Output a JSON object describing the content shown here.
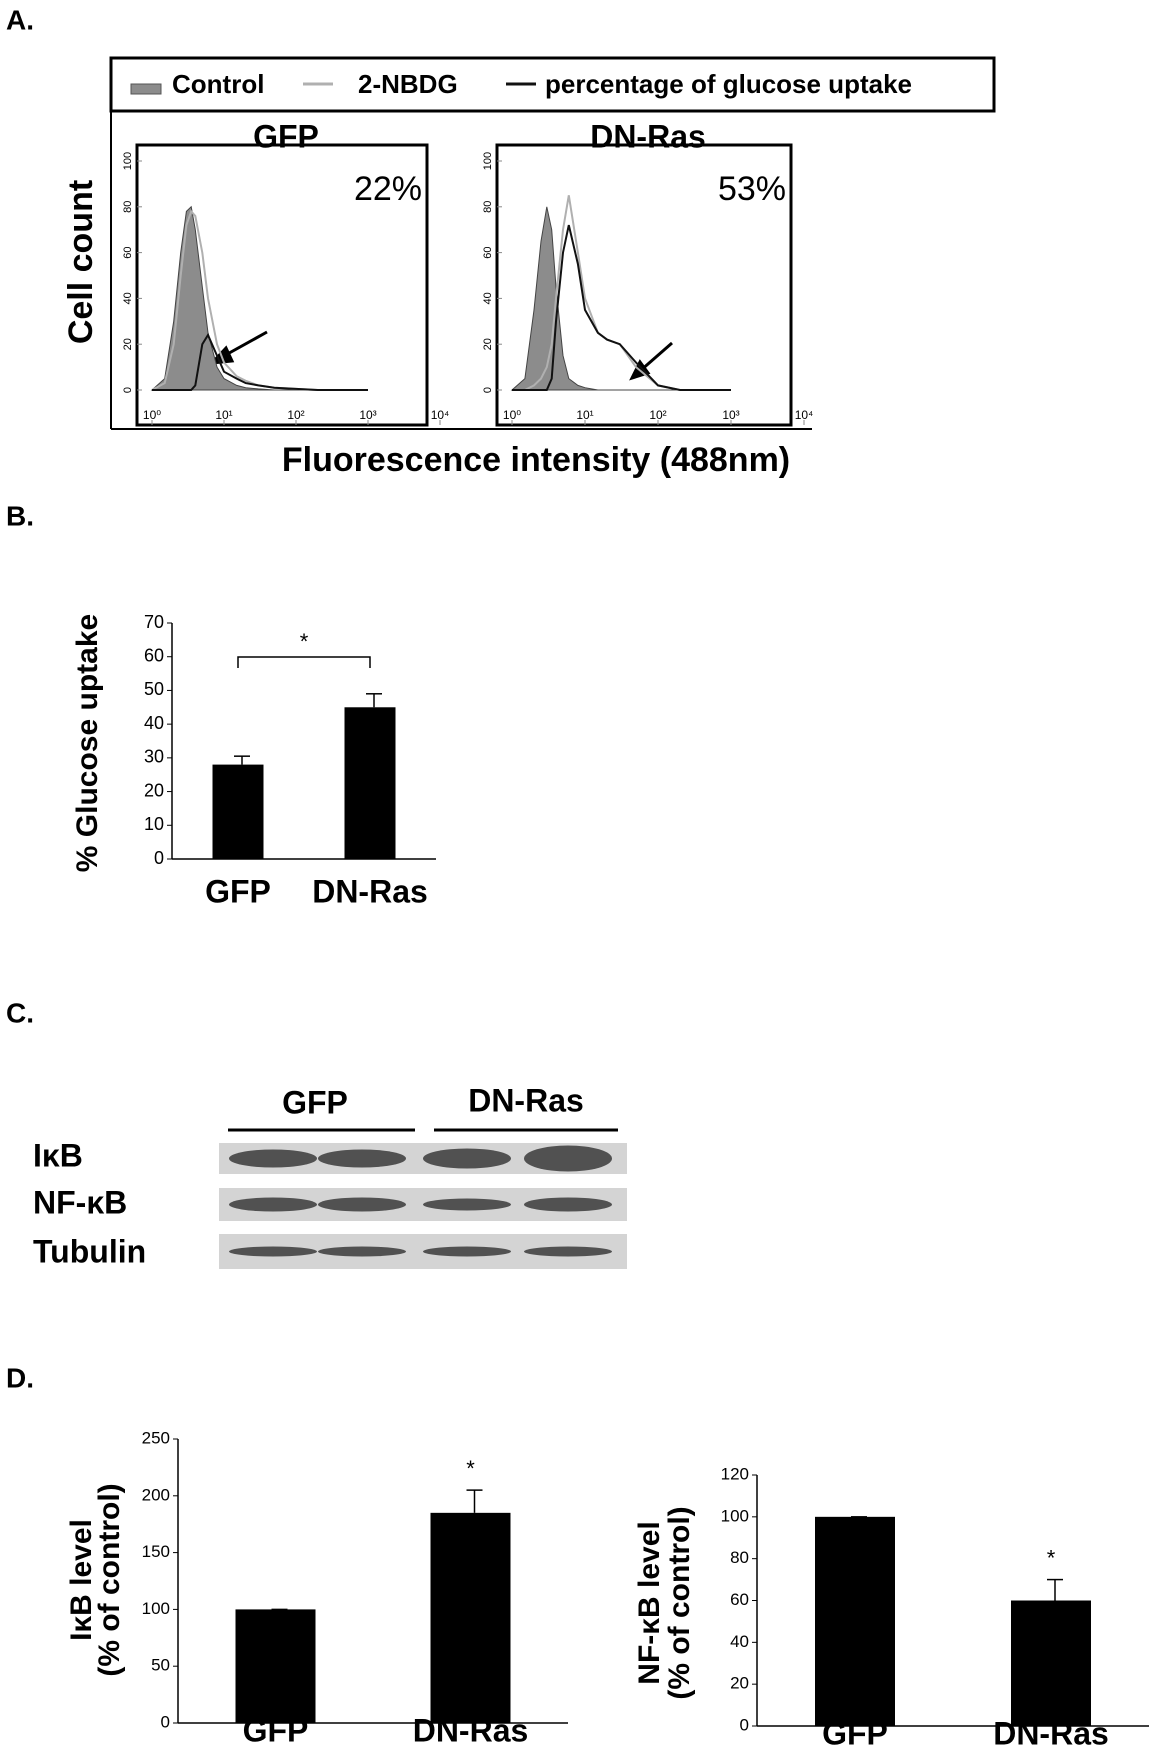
{
  "panel_labels": [
    "A.",
    "B.",
    "C.",
    "D."
  ],
  "chart_data": [
    {
      "type": "flow",
      "y_label": "Cell count",
      "x_label": "Fluorescence intensity (488nm)",
      "x_scale": "log",
      "xlim": [
        1,
        10000
      ],
      "xticks": [
        {
          "value": 1,
          "label": "10⁰"
        },
        {
          "value": 10,
          "label": "10¹"
        },
        {
          "value": 100,
          "label": "10²"
        },
        {
          "value": 1000,
          "label": "10³"
        },
        {
          "value": 10000,
          "label": "10⁴"
        }
      ],
      "ylim": [
        0,
        100
      ],
      "yticks": [
        0,
        20,
        40,
        60,
        80,
        100
      ],
      "x": [
        1,
        1.5,
        2,
        2.5,
        3,
        3.5,
        4,
        5,
        6,
        8,
        10,
        15,
        20,
        30,
        50,
        100,
        200,
        1000
      ],
      "series": [
        {
          "name": "Control",
          "color": "#8c8c8c",
          "filled": true
        },
        {
          "name": "2-NBDG",
          "color": "#b0b0b0"
        },
        {
          "name": "percentage of glucose uptake",
          "color": "#111111"
        }
      ],
      "panels": [
        {
          "title": "GFP",
          "annotation": "22%",
          "values": [
            [
              0,
              5,
              30,
              60,
              78,
              80,
              70,
              45,
              25,
              10,
              5,
              2,
              1,
              0.5,
              0,
              0,
              0,
              0
            ],
            [
              0,
              3,
              20,
              50,
              72,
              78,
              76,
              60,
              40,
              20,
              12,
              6,
              4,
              2,
              1,
              0.5,
              0,
              0
            ],
            [
              0,
              0,
              0,
              0,
              0,
              0,
              2,
              20,
              24,
              15,
              8,
              5,
              3,
              2,
              1,
              0.5,
              0,
              0
            ]
          ]
        },
        {
          "title": "DN-Ras",
          "annotation": "53%",
          "values": [
            [
              0,
              5,
              35,
              65,
              80,
              70,
              45,
              15,
              5,
              2,
              1,
              0,
              0,
              0,
              0,
              0,
              0,
              0
            ],
            [
              0,
              0,
              2,
              5,
              10,
              20,
              40,
              70,
              85,
              60,
              40,
              25,
              22,
              20,
              10,
              2,
              0,
              0
            ],
            [
              0,
              0,
              0,
              0,
              0,
              5,
              30,
              60,
              72,
              55,
              35,
              25,
              22,
              20,
              12,
              2,
              0,
              0
            ]
          ]
        }
      ]
    },
    {
      "type": "bar",
      "y_label": [
        "% Glucose uptake"
      ],
      "categories": [
        "GFP",
        "DN-Ras"
      ],
      "values": [
        28,
        45
      ],
      "errors": [
        2.5,
        4
      ],
      "color": "#000000",
      "ylim": [
        0,
        70
      ],
      "yticks": [
        0,
        10,
        20,
        30,
        40,
        50,
        60,
        70
      ],
      "annotation": "*"
    },
    {
      "type": "bar",
      "y_label": [
        "IκB level",
        "(% of control)"
      ],
      "categories": [
        "GFP",
        "DN-Ras"
      ],
      "values": [
        100,
        185
      ],
      "errors": [
        0,
        20
      ],
      "color": "#000000",
      "ylim": [
        0,
        250
      ],
      "yticks": [
        0,
        50,
        100,
        150,
        200,
        250
      ],
      "annotation": "*"
    },
    {
      "type": "bar",
      "y_label": [
        "NF-κB level",
        "(% of control)"
      ],
      "categories": [
        "GFP",
        "DN-Ras"
      ],
      "values": [
        100,
        60
      ],
      "errors": [
        0,
        10
      ],
      "color": "#000000",
      "ylim": [
        0,
        120
      ],
      "yticks": [
        0,
        20,
        40,
        60,
        80,
        100,
        120
      ],
      "annotation": "*"
    }
  ],
  "blot": {
    "groups": [
      "GFP",
      "DN-Ras"
    ],
    "rows": [
      "IκB",
      "NF-κB",
      "Tubulin"
    ]
  }
}
